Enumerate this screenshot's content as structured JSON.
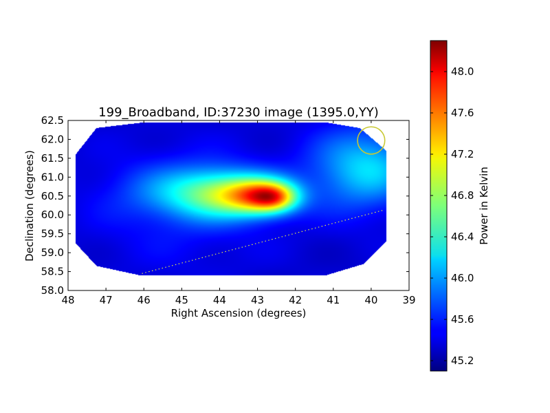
{
  "chart_data": {
    "type": "heatmap",
    "title": "199_Broadband, ID:37230 image (1395.0,YY)",
    "xlabel": "Right Ascension (degrees)",
    "ylabel": "Declination (degrees)",
    "xlim": [
      48,
      39
    ],
    "ylim": [
      58.0,
      62.5
    ],
    "x_ticks": [
      "48",
      "47",
      "46",
      "45",
      "44",
      "43",
      "42",
      "41",
      "40",
      "39"
    ],
    "y_ticks": [
      "58.0",
      "58.5",
      "59.0",
      "59.5",
      "60.0",
      "60.5",
      "61.0",
      "61.5",
      "62.0",
      "62.5"
    ],
    "colormap": "jet",
    "colorbar": {
      "label": "Power in Kelvin",
      "range": [
        45.1,
        48.3
      ],
      "ticks": [
        "45.2",
        "45.6",
        "46.0",
        "46.4",
        "46.8",
        "47.2",
        "47.6",
        "48.0"
      ]
    },
    "valid_region": [
      [
        47.25,
        62.3
      ],
      [
        46.0,
        62.45
      ],
      [
        41.2,
        62.45
      ],
      [
        40.3,
        62.3
      ],
      [
        39.6,
        61.7
      ],
      [
        39.6,
        59.3
      ],
      [
        40.2,
        58.7
      ],
      [
        41.2,
        58.4
      ],
      [
        46.1,
        58.4
      ],
      [
        47.25,
        58.65
      ],
      [
        47.8,
        59.25
      ],
      [
        47.8,
        61.6
      ]
    ],
    "components": [
      {
        "ra": 45.1,
        "dec": 60.2,
        "sigma_ra": 1.7,
        "sigma_dec": 1.2,
        "amp": 0.2
      },
      {
        "ra": 44.9,
        "dec": 60.6,
        "sigma_ra": 1.2,
        "sigma_dec": 0.5,
        "amp": 0.45
      },
      {
        "ra": 43.9,
        "dec": 60.55,
        "sigma_ra": 0.9,
        "sigma_dec": 0.45,
        "amp": 0.9
      },
      {
        "ra": 42.9,
        "dec": 60.5,
        "sigma_ra": 0.65,
        "sigma_dec": 0.33,
        "amp": 1.55
      },
      {
        "ra": 42.55,
        "dec": 60.45,
        "sigma_ra": 0.4,
        "sigma_dec": 0.25,
        "amp": 0.9
      },
      {
        "ra": 40.3,
        "dec": 61.2,
        "sigma_ra": 1.0,
        "sigma_dec": 0.8,
        "amp": 0.68
      },
      {
        "ra": 39.8,
        "dec": 61.3,
        "sigma_ra": 0.7,
        "sigma_dec": 0.55,
        "amp": 0.2
      }
    ],
    "background": 45.35,
    "circle_marker": {
      "ra": 40.0,
      "dec": 61.97,
      "radius_deg": 0.36,
      "color": "#c8c832"
    },
    "dotted_line": {
      "points": [
        [
          46.05,
          58.45
        ],
        [
          39.7,
          60.12
        ]
      ],
      "color": "#e6e64c"
    }
  }
}
